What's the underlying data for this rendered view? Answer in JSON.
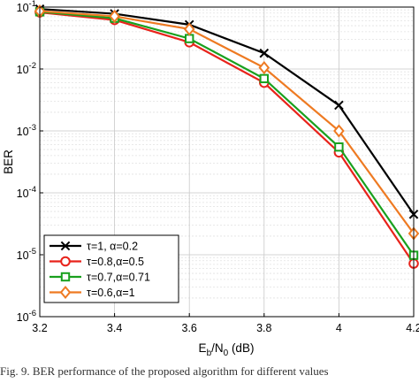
{
  "chart_data": {
    "type": "line",
    "x": [
      3.2,
      3.4,
      3.6,
      3.8,
      4.0,
      4.2
    ],
    "xlim": [
      3.2,
      4.2
    ],
    "ylim": [
      1e-06,
      0.1
    ],
    "yscale": "log",
    "grid": true,
    "xlabel": "E_b/N_0 (dB)",
    "ylabel": "BER",
    "x_ticks": [
      "3.2",
      "3.4",
      "3.6",
      "3.8",
      "4",
      "4.2"
    ],
    "y_ticks": [
      {
        "base": "10",
        "exp": "-6"
      },
      {
        "base": "10",
        "exp": "-5"
      },
      {
        "base": "10",
        "exp": "-4"
      },
      {
        "base": "10",
        "exp": "-3"
      },
      {
        "base": "10",
        "exp": "-2"
      },
      {
        "base": "10",
        "exp": "-1"
      }
    ],
    "legend_position": "bottom-left",
    "series": [
      {
        "name": "τ=1, α=0.2",
        "color": "#000000",
        "marker": "x",
        "values": [
          0.093,
          0.078,
          0.052,
          0.018,
          0.0026,
          4.5e-05
        ]
      },
      {
        "name": "τ=0.8,α=0.5",
        "color": "#e8231b",
        "marker": "circle",
        "values": [
          0.082,
          0.062,
          0.027,
          0.006,
          0.00045,
          7.2e-06
        ]
      },
      {
        "name": "τ=0.7,α=0.71",
        "color": "#19a01e",
        "marker": "square",
        "values": [
          0.084,
          0.066,
          0.031,
          0.007,
          0.00055,
          9.8e-06
        ]
      },
      {
        "name": "τ=0.6,α=1",
        "color": "#ee7a22",
        "marker": "diamond",
        "values": [
          0.086,
          0.071,
          0.044,
          0.0105,
          0.001,
          2.2e-05
        ]
      }
    ]
  },
  "caption": "Fig. 9.   BER performance of the proposed algorithm for different values"
}
